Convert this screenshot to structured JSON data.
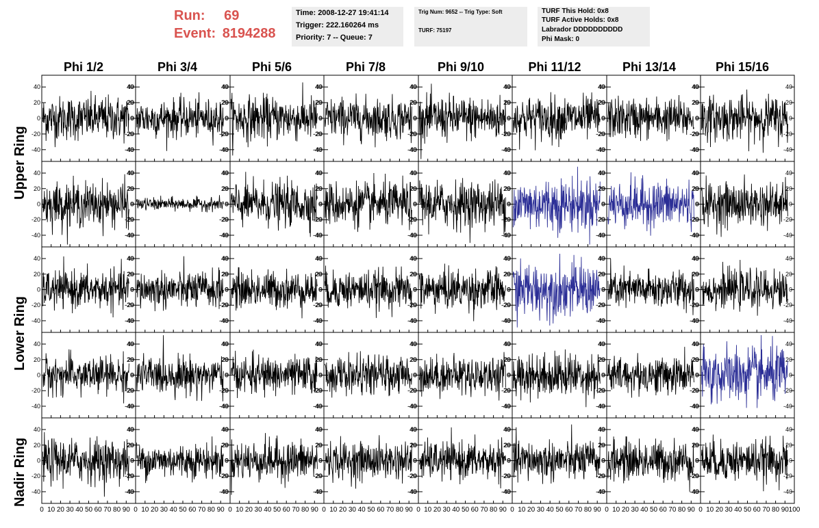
{
  "header": {
    "run_label": "Run:",
    "run_value": "69",
    "event_label": "Event:",
    "event_value": "8194288",
    "time_box": [
      "Time: 2008-12-27 19:41:14",
      "Trigger: 222.160264 ms",
      "Priority: 7 -- Queue: 7"
    ],
    "trig_box": [
      "Trig Num: 9652 -- Trig Type: Soft",
      "TURF: 75197"
    ],
    "turf_box": [
      "TURF This Hold: 0x8",
      "TURF Active Holds: 0x8",
      "Labrador DDDDDDDDDD",
      "Phi Mask: 0"
    ],
    "label_color": "#d9534f",
    "box_color": "#ededed"
  },
  "chart_data": {
    "type": "line",
    "columns": [
      "Phi 1/2",
      "Phi 3/4",
      "Phi 5/6",
      "Phi 7/8",
      "Phi 9/10",
      "Phi 11/12",
      "Phi 13/14",
      "Phi 15/16"
    ],
    "ring_labels": [
      "Upper Ring",
      "Lower Ring",
      "Nadir Ring"
    ],
    "rows": 5,
    "xlim": [
      0,
      100
    ],
    "ylim": [
      -55,
      55
    ],
    "x_ticks": [
      0,
      10,
      20,
      30,
      40,
      50,
      60,
      70,
      80,
      90,
      100
    ],
    "x_tick_labels": [
      "0",
      "10",
      "20",
      "30",
      "40",
      "50",
      "60",
      "70",
      "80",
      "90",
      "100"
    ],
    "y_ticks": [
      -40,
      -20,
      0,
      20,
      40
    ],
    "y_tick_labels": [
      "-40",
      "-20",
      "0",
      "20",
      "40"
    ],
    "samples_per_trace": 260,
    "trace_color": "#000000",
    "highlight_color": "#2b2e96",
    "highlighted_panels": [
      [
        1,
        5
      ],
      [
        1,
        6
      ],
      [
        2,
        5
      ],
      [
        3,
        7
      ]
    ],
    "amplitudes": [
      [
        14,
        12,
        14,
        13,
        14,
        14,
        13,
        14
      ],
      [
        14,
        4,
        14,
        14,
        15,
        17,
        15,
        14
      ],
      [
        12,
        12,
        12,
        12,
        13,
        17,
        12,
        12
      ],
      [
        12,
        12,
        12,
        12,
        12,
        14,
        12,
        18
      ],
      [
        14,
        11,
        13,
        12,
        12,
        13,
        13,
        13
      ]
    ]
  }
}
